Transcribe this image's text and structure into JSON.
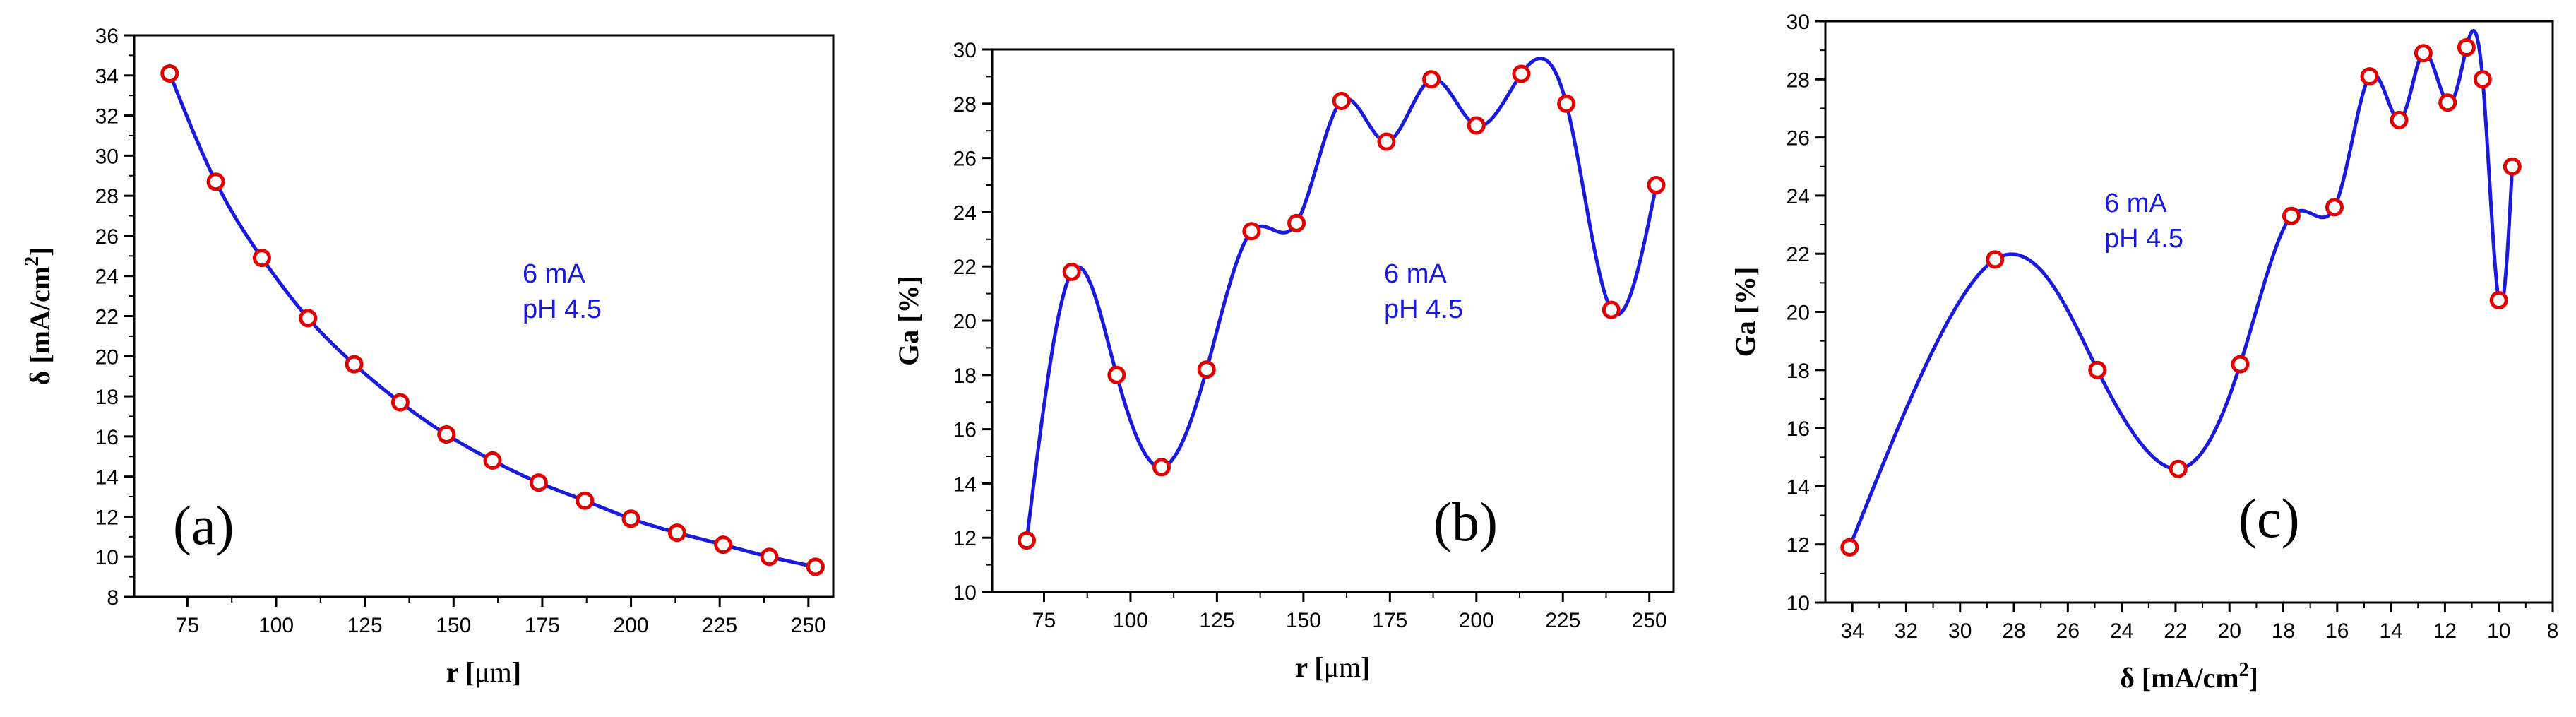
{
  "colors": {
    "line": "#1a1adc",
    "marker_edge": "#e00000",
    "marker_fill": "#ffffff",
    "annotation": "#1a1adc",
    "axis": "#000000"
  },
  "chart_data": [
    {
      "type": "line",
      "panel_label": "(a)",
      "xlabel_main": "r [",
      "xlabel_unit": "μm",
      "xlabel_close": "]",
      "ylabel_main": "δ [mA/cm",
      "ylabel_sup": "2",
      "ylabel_close": "]",
      "xlim": [
        60,
        257
      ],
      "ylim": [
        8,
        36
      ],
      "x_ticks": [
        75,
        100,
        125,
        150,
        175,
        200,
        225,
        250
      ],
      "y_ticks": [
        8,
        10,
        12,
        14,
        16,
        18,
        20,
        22,
        24,
        26,
        28,
        30,
        32,
        34,
        36
      ],
      "x_reversed": false,
      "annotations": [
        "6 mA",
        "pH 4.5"
      ],
      "x": [
        70,
        83,
        96,
        109,
        122,
        135,
        148,
        161,
        174,
        187,
        200,
        213,
        226,
        239,
        252
      ],
      "y": [
        34.1,
        28.7,
        24.9,
        21.9,
        19.6,
        17.7,
        16.1,
        14.8,
        13.7,
        12.8,
        11.9,
        11.2,
        10.6,
        10.0,
        9.5
      ]
    },
    {
      "type": "line",
      "panel_label": "(b)",
      "xlabel_main": "r [",
      "xlabel_unit": "μm",
      "xlabel_close": "]",
      "ylabel_main": "Ga [%]",
      "ylabel_sup": "",
      "ylabel_close": "",
      "xlim": [
        60,
        257
      ],
      "ylim": [
        10,
        30
      ],
      "x_ticks": [
        75,
        100,
        125,
        150,
        175,
        200,
        225,
        250
      ],
      "y_ticks": [
        10,
        12,
        14,
        16,
        18,
        20,
        22,
        24,
        26,
        28,
        30
      ],
      "x_reversed": false,
      "annotations": [
        "6 mA",
        "pH 4.5"
      ],
      "x": [
        70,
        83,
        96,
        109,
        122,
        135,
        148,
        161,
        174,
        187,
        200,
        213,
        226,
        239,
        252
      ],
      "y": [
        11.9,
        21.8,
        18.0,
        14.6,
        18.2,
        23.3,
        23.6,
        28.1,
        26.6,
        28.9,
        27.2,
        29.1,
        28.0,
        20.4,
        25.0
      ]
    },
    {
      "type": "line",
      "panel_label": "(c)",
      "xlabel_main": "δ [mA/cm",
      "xlabel_sup": "2",
      "xlabel_close": "]",
      "ylabel_main": "Ga [%]",
      "ylabel_sup": "",
      "ylabel_close": "",
      "xlim": [
        35,
        8
      ],
      "ylim": [
        10,
        30
      ],
      "x_ticks": [
        34,
        32,
        30,
        28,
        26,
        24,
        22,
        20,
        18,
        16,
        14,
        12,
        10,
        8
      ],
      "y_ticks": [
        10,
        12,
        14,
        16,
        18,
        20,
        22,
        24,
        26,
        28,
        30
      ],
      "x_reversed": true,
      "annotations": [
        "6 mA",
        "pH 4.5"
      ],
      "x": [
        34.1,
        28.7,
        24.9,
        21.9,
        19.6,
        17.7,
        16.1,
        14.8,
        13.7,
        12.8,
        11.9,
        11.2,
        10.6,
        10.0,
        9.5
      ],
      "y": [
        11.9,
        21.8,
        18.0,
        14.6,
        18.2,
        23.3,
        23.6,
        28.1,
        26.6,
        28.9,
        27.2,
        29.1,
        28.0,
        20.4,
        25.0
      ]
    }
  ]
}
